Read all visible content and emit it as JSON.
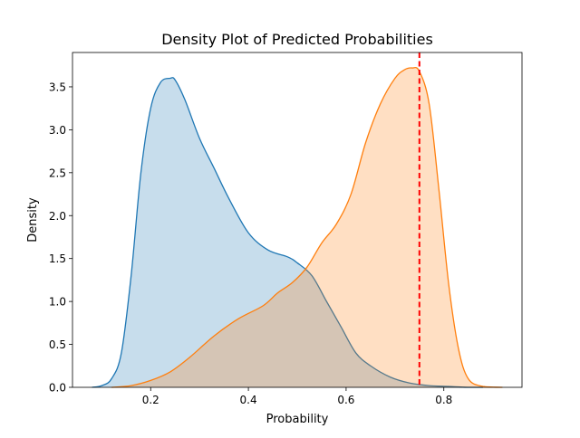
{
  "chart_data": {
    "type": "area",
    "title": "Density Plot of Predicted Probabilities",
    "xlabel": "Probability",
    "ylabel": "Density",
    "xlim": [
      0.04,
      0.96
    ],
    "ylim": [
      0,
      3.9
    ],
    "xticks": [
      0.2,
      0.4,
      0.6,
      0.8
    ],
    "xtick_labels": [
      "0.2",
      "0.4",
      "0.6",
      "0.8"
    ],
    "yticks": [
      0.0,
      0.5,
      1.0,
      1.5,
      2.0,
      2.5,
      3.0,
      3.5
    ],
    "ytick_labels": [
      "0.0",
      "0.5",
      "1.0",
      "1.5",
      "2.0",
      "2.5",
      "3.0",
      "3.5"
    ],
    "grid": false,
    "legend": "none",
    "series": [
      {
        "color": "#1f77b4",
        "x": [
          0.08,
          0.1,
          0.12,
          0.14,
          0.16,
          0.18,
          0.2,
          0.22,
          0.24,
          0.25,
          0.27,
          0.3,
          0.33,
          0.36,
          0.4,
          0.44,
          0.48,
          0.5,
          0.53,
          0.56,
          0.59,
          0.62,
          0.65,
          0.69,
          0.73,
          0.77,
          0.81,
          0.85,
          0.88
        ],
        "y": [
          0.0,
          0.02,
          0.1,
          0.4,
          1.3,
          2.5,
          3.25,
          3.55,
          3.6,
          3.58,
          3.35,
          2.9,
          2.55,
          2.2,
          1.8,
          1.6,
          1.52,
          1.45,
          1.3,
          1.0,
          0.7,
          0.4,
          0.25,
          0.12,
          0.05,
          0.02,
          0.01,
          0.0,
          0.0
        ]
      },
      {
        "color": "#ff7f0e",
        "x": [
          0.12,
          0.16,
          0.2,
          0.24,
          0.28,
          0.33,
          0.38,
          0.43,
          0.46,
          0.49,
          0.52,
          0.55,
          0.58,
          0.61,
          0.64,
          0.67,
          0.7,
          0.72,
          0.735,
          0.75,
          0.77,
          0.79,
          0.81,
          0.83,
          0.85,
          0.88,
          0.92
        ],
        "y": [
          0.0,
          0.02,
          0.08,
          0.18,
          0.35,
          0.6,
          0.8,
          0.95,
          1.1,
          1.22,
          1.4,
          1.68,
          1.9,
          2.25,
          2.85,
          3.3,
          3.6,
          3.7,
          3.72,
          3.68,
          3.3,
          2.3,
          1.2,
          0.45,
          0.1,
          0.01,
          0.0
        ]
      }
    ],
    "reference_line": {
      "orientation": "vertical",
      "x": 0.75,
      "color": "#ff0000",
      "style": "dashed"
    }
  }
}
